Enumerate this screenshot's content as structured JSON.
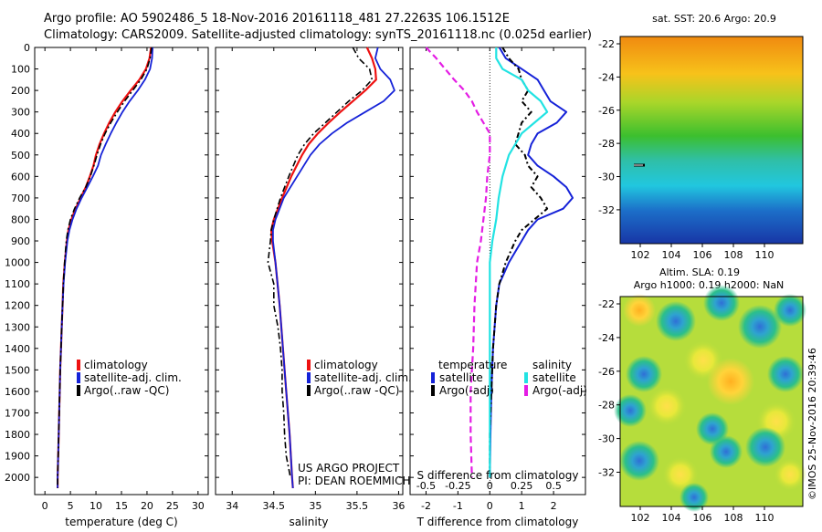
{
  "header": {
    "line1": "Argo profile: AO 5902486_5 18-Nov-2016 20161118_481 27.2263S 106.1512E",
    "line2": "Climatology: CARS2009. Satellite-adjusted climatology: synTS_20161118.nc (0.025d earlier)"
  },
  "depth_ticks": [
    "0",
    "100",
    "200",
    "300",
    "400",
    "500",
    "600",
    "700",
    "800",
    "900",
    "1000",
    "1100",
    "1200",
    "1300",
    "1400",
    "1500",
    "1600",
    "1700",
    "1800",
    "1900",
    "2000"
  ],
  "legend_ts": {
    "climatology": "climatology",
    "satellite": "satellite-adj. clim.",
    "argo": "Argo(..raw -QC)"
  },
  "legend_diff": {
    "temperature": "temperature",
    "salinity": "salinity",
    "satellite_t": "satellite",
    "argo_t": "Argo(-adj)",
    "satellite_s": "satellite",
    "argo_s": "Argo(-adj)"
  },
  "credits": {
    "project": "US ARGO PROJECT",
    "pi": "PI: DEAN ROEMMICH"
  },
  "maps": {
    "sst_title": "sat. SST: 20.6  Argo: 20.9",
    "sla_title1": "Altim. SLA: 0.19",
    "sla_title2": "Argo h1000: 0.19 h2000: NaN",
    "lat_ticks": [
      "-22",
      "-24",
      "-26",
      "-28",
      "-30",
      "-32"
    ],
    "lon_ticks": [
      "102",
      "104",
      "106",
      "108",
      "110"
    ]
  },
  "footer": {
    "imos": "©IMOS 25-Nov-2016 20:39:46"
  },
  "colors": {
    "climatology": "#ee1111",
    "satellite": "#1522d8",
    "argo": "#000000",
    "sal_sat": "#22e3e3",
    "sal_argo": "#e41de4"
  },
  "chart_data": [
    {
      "type": "line",
      "xlabel": "temperature (deg C)",
      "xticks": [
        "0",
        "5",
        "10",
        "15",
        "20",
        "25",
        "30"
      ],
      "xlim": [
        -2,
        32
      ],
      "ylim": [
        2080,
        0
      ],
      "series": [
        {
          "name": "climatology",
          "depth": [
            0,
            50,
            100,
            150,
            200,
            250,
            300,
            350,
            400,
            450,
            500,
            550,
            600,
            650,
            700,
            750,
            800,
            850,
            900,
            1000,
            1100,
            1200,
            1300,
            1400,
            1500,
            1600,
            1700,
            1800,
            1900,
            2000,
            2050
          ],
          "values": [
            20.8,
            20.5,
            19.8,
            18.5,
            16.8,
            15.2,
            13.8,
            12.6,
            11.6,
            10.7,
            10.0,
            9.5,
            8.8,
            8.0,
            7.0,
            6.0,
            5.2,
            4.6,
            4.3,
            3.9,
            3.6,
            3.45,
            3.3,
            3.15,
            3.0,
            2.9,
            2.8,
            2.7,
            2.6,
            2.5,
            2.5
          ]
        },
        {
          "name": "satellite-adj. clim.",
          "depth": [
            0,
            50,
            100,
            150,
            200,
            250,
            300,
            350,
            400,
            450,
            500,
            550,
            600,
            650,
            700,
            750,
            800,
            850,
            900,
            1000,
            1100,
            1200,
            1300,
            1400,
            1500,
            1600,
            1700,
            1800,
            1900,
            2000,
            2050
          ],
          "values": [
            21.1,
            21.0,
            20.6,
            19.6,
            18.2,
            16.6,
            15.2,
            14.0,
            12.9,
            11.9,
            11.0,
            10.4,
            9.4,
            8.3,
            7.2,
            6.2,
            5.4,
            4.8,
            4.4,
            3.95,
            3.65,
            3.45,
            3.3,
            3.15,
            3.0,
            2.9,
            2.8,
            2.7,
            2.6,
            2.5,
            2.5
          ]
        },
        {
          "name": "Argo(..raw -QC)",
          "depth": [
            0,
            50,
            100,
            150,
            200,
            250,
            300,
            350,
            400,
            450,
            500,
            550,
            600,
            650,
            700,
            750,
            800,
            850,
            900,
            1000,
            1100,
            1200,
            1300,
            1400,
            1500,
            1600,
            1700,
            1800,
            1900,
            2000,
            2050
          ],
          "values": [
            20.9,
            20.6,
            20.0,
            18.8,
            17.2,
            15.6,
            14.2,
            12.9,
            11.8,
            10.9,
            10.2,
            9.6,
            8.9,
            8.0,
            6.8,
            5.8,
            5.0,
            4.5,
            4.2,
            3.85,
            3.6,
            3.45,
            3.3,
            3.15,
            3.0,
            2.9,
            2.8,
            2.7,
            2.6,
            2.5,
            2.5
          ]
        }
      ]
    },
    {
      "type": "line",
      "xlabel": "salinity",
      "xticks": [
        "34",
        "34.5",
        "35",
        "35.5",
        "36"
      ],
      "xlim": [
        33.8,
        36.05
      ],
      "ylim": [
        2080,
        0
      ],
      "series": [
        {
          "name": "climatology",
          "depth": [
            0,
            50,
            100,
            150,
            200,
            250,
            300,
            350,
            400,
            450,
            500,
            600,
            700,
            800,
            850,
            900,
            1000,
            1200,
            1400,
            1600,
            1800,
            2000,
            2050
          ],
          "values": [
            35.62,
            35.68,
            35.72,
            35.73,
            35.6,
            35.45,
            35.3,
            35.16,
            35.03,
            34.92,
            34.84,
            34.71,
            34.6,
            34.5,
            34.47,
            34.48,
            34.52,
            34.57,
            34.61,
            34.65,
            34.69,
            34.72,
            34.73
          ]
        },
        {
          "name": "satellite-adj. clim.",
          "depth": [
            0,
            50,
            100,
            150,
            200,
            250,
            300,
            350,
            400,
            450,
            500,
            600,
            700,
            800,
            850,
            900,
            1000,
            1200,
            1400,
            1600,
            1800,
            2000,
            2050
          ],
          "values": [
            35.75,
            35.72,
            35.78,
            35.9,
            35.95,
            35.82,
            35.6,
            35.38,
            35.2,
            35.05,
            34.94,
            34.78,
            34.62,
            34.52,
            34.49,
            34.49,
            34.52,
            34.57,
            34.61,
            34.65,
            34.69,
            34.72,
            34.73
          ]
        },
        {
          "name": "Argo(..raw -QC)",
          "depth": [
            0,
            50,
            100,
            150,
            200,
            250,
            300,
            350,
            400,
            450,
            500,
            600,
            700,
            800,
            850,
            900,
            1000,
            1100,
            1200,
            1300,
            1400,
            1500,
            1600,
            1700,
            1800,
            1900,
            2000
          ],
          "values": [
            35.45,
            35.52,
            35.65,
            35.68,
            35.56,
            35.4,
            35.26,
            35.12,
            34.98,
            34.87,
            34.79,
            34.68,
            34.58,
            34.5,
            34.47,
            34.46,
            34.43,
            34.5,
            34.5,
            34.55,
            34.58,
            34.6,
            34.6,
            34.62,
            34.63,
            34.65,
            34.7
          ]
        }
      ]
    },
    {
      "type": "line",
      "xlabel": "T difference from climatology",
      "xlabel2": "S difference from climatology",
      "xticks": [
        "-2",
        "-1",
        "0",
        "1",
        "2"
      ],
      "xticks_s": [
        "-0.5",
        "-0.25",
        "0",
        "0.25",
        "0.5"
      ],
      "xlim": [
        -2.5,
        3.0
      ],
      "ylim": [
        2080,
        0
      ],
      "series": [
        {
          "name": "satellite (T)",
          "depth": [
            0,
            50,
            100,
            150,
            200,
            250,
            300,
            350,
            400,
            450,
            500,
            550,
            600,
            650,
            700,
            750,
            800,
            850,
            900,
            1000,
            1100,
            1200,
            1400,
            1600,
            1800,
            2000
          ],
          "values": [
            0.3,
            0.5,
            1.0,
            1.5,
            1.7,
            1.9,
            2.4,
            2.1,
            1.5,
            1.3,
            1.2,
            1.5,
            2.0,
            2.4,
            2.6,
            2.3,
            1.5,
            1.2,
            1.0,
            0.6,
            0.3,
            0.2,
            0.1,
            0.05,
            0.02,
            0.0
          ]
        },
        {
          "name": "Argo(-adj) (T)",
          "depth": [
            0,
            50,
            100,
            150,
            200,
            250,
            300,
            350,
            400,
            450,
            500,
            550,
            600,
            650,
            700,
            750,
            800,
            850,
            900,
            1000,
            1100,
            1200,
            1400,
            1600,
            1800,
            2000
          ],
          "values": [
            0.4,
            0.6,
            0.9,
            1.0,
            1.2,
            1.0,
            1.3,
            1.0,
            0.9,
            0.8,
            1.1,
            1.2,
            1.5,
            1.3,
            1.6,
            1.8,
            1.4,
            1.0,
            0.8,
            0.5,
            0.3,
            0.2,
            0.1,
            0.05,
            0.0,
            0.0
          ]
        },
        {
          "name": "satellite (S)",
          "depth": [
            0,
            50,
            100,
            150,
            200,
            250,
            300,
            350,
            400,
            450,
            500,
            600,
            700,
            800,
            900,
            1000,
            1200,
            1400,
            1600,
            1800,
            2000
          ],
          "values": [
            0.05,
            0.05,
            0.1,
            0.25,
            0.3,
            0.4,
            0.45,
            0.35,
            0.25,
            0.2,
            0.15,
            0.1,
            0.07,
            0.05,
            0.02,
            0.0,
            0.0,
            0.0,
            0.0,
            0.0,
            0.0
          ]
        },
        {
          "name": "Argo(-adj) (S)",
          "depth": [
            0,
            50,
            100,
            150,
            200,
            250,
            300,
            350,
            400,
            500,
            600,
            700,
            800,
            900,
            1000,
            1200,
            1400,
            1600,
            1800,
            2000
          ],
          "values": [
            -0.5,
            -0.42,
            -0.35,
            -0.28,
            -0.2,
            -0.14,
            -0.1,
            -0.05,
            0.0,
            0.0,
            -0.02,
            -0.03,
            -0.05,
            -0.07,
            -0.1,
            -0.12,
            -0.13,
            -0.15,
            -0.15,
            -0.14
          ]
        }
      ]
    }
  ]
}
